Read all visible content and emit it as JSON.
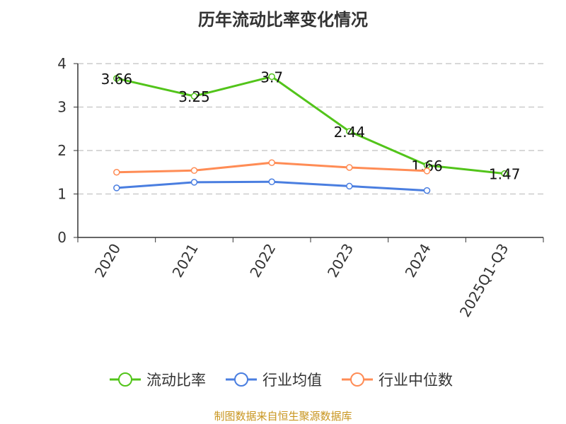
{
  "chart_data": {
    "type": "line",
    "title": "历年流动比率变化情况",
    "categories": [
      "2020",
      "2021",
      "2022",
      "2023",
      "2024",
      "2025Q1-Q3"
    ],
    "ylim": [
      0,
      4
    ],
    "yticks": [
      "0",
      "1",
      "2",
      "3",
      "4"
    ],
    "grid": true,
    "legend_position": "bottom",
    "series": [
      {
        "name": "流动比率",
        "color": "#52c41a",
        "values": [
          3.66,
          3.25,
          3.7,
          2.44,
          1.66,
          1.47
        ],
        "labels": [
          "3.66",
          "3.25",
          "3.7",
          "2.44",
          "1.66",
          "1.47"
        ]
      },
      {
        "name": "行业均值",
        "color": "#4a7ee0",
        "values": [
          1.14,
          1.27,
          1.28,
          1.18,
          1.08,
          null
        ]
      },
      {
        "name": "行业中位数",
        "color": "#ff8c55",
        "values": [
          1.5,
          1.54,
          1.72,
          1.61,
          1.53,
          null
        ]
      }
    ]
  },
  "source": "制图数据来自恒生聚源数据库"
}
